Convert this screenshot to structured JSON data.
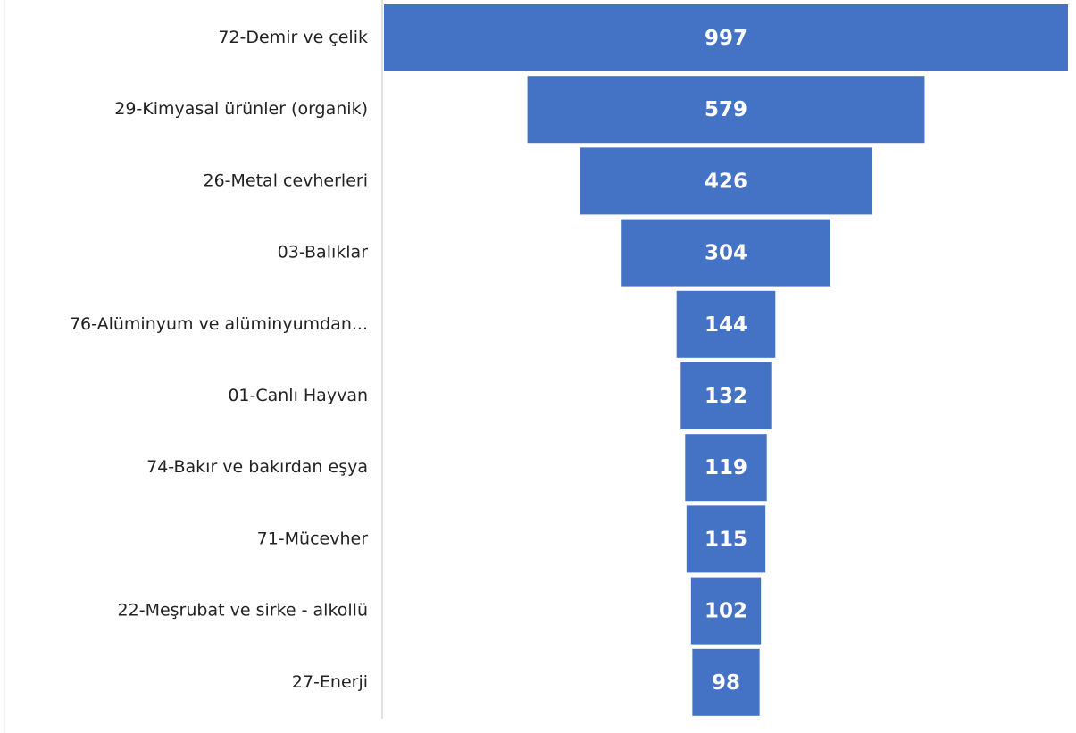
{
  "chart_data": {
    "type": "funnel",
    "categories": [
      "72-Demir ve çelik",
      "29-Kimyasal ürünler (organik)",
      "26-Metal cevherleri",
      "03-Balıklar",
      "76-Alüminyum ve alüminyumdan...",
      "01-Canlı Hayvan",
      "74-Bakır ve bakırdan eşya",
      "71-Mücevher",
      "22-Meşrubat ve sirke  - alkollü",
      "27-Enerji"
    ],
    "values": [
      997,
      579,
      426,
      304,
      144,
      132,
      119,
      115,
      102,
      98
    ],
    "color": "#4472c4"
  }
}
